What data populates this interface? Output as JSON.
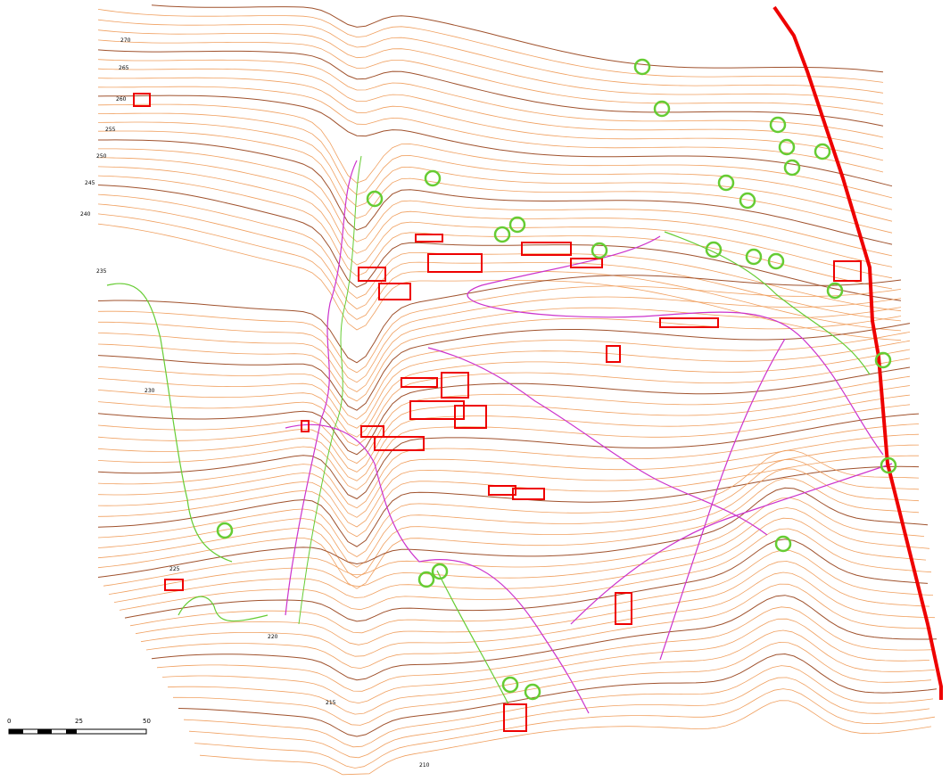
{
  "scale_bar": {
    "labels": [
      "0",
      "25",
      "50"
    ]
  },
  "elevation_labels": [
    "270",
    "265",
    "260",
    "255",
    "250",
    "245",
    "240",
    "235",
    "230",
    "225",
    "220",
    "215",
    "210"
  ]
}
